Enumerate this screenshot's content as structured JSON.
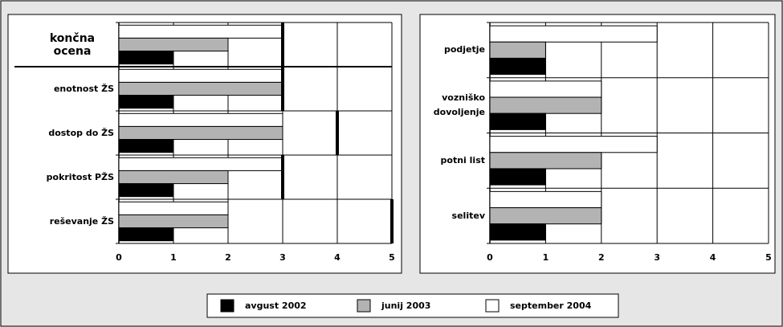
{
  "chart_data": [
    {
      "type": "bar",
      "orientation": "horizontal",
      "categories": [
        "končna ocena",
        "enotnost ŽS",
        "dostop do ŽS",
        "pokritost PŽS",
        "reševanje ŽS"
      ],
      "series": [
        {
          "name": "september 2004",
          "color": "#ffffff",
          "values": [
            3,
            3,
            3,
            3,
            2
          ]
        },
        {
          "name": "junij 2003",
          "color": "#b3b3b3",
          "values": [
            2,
            3,
            3,
            2,
            2
          ]
        },
        {
          "name": "avgust 2002",
          "color": "#000000",
          "values": [
            1,
            1,
            1,
            1,
            1
          ]
        }
      ],
      "markers": [
        3,
        3,
        4,
        3,
        5
      ],
      "xlim": [
        0,
        5
      ],
      "xticks": [
        0,
        1,
        2,
        3,
        4,
        5
      ],
      "grid": true
    },
    {
      "type": "bar",
      "orientation": "horizontal",
      "categories": [
        "podjetje",
        "vozniško dovoljenje",
        "potni list",
        "selitev"
      ],
      "series": [
        {
          "name": "september 2004",
          "color": "#ffffff",
          "values": [
            3,
            2,
            3,
            2
          ]
        },
        {
          "name": "junij 2003",
          "color": "#b3b3b3",
          "values": [
            1,
            2,
            2,
            2
          ]
        },
        {
          "name": "avgust 2002",
          "color": "#000000",
          "values": [
            1,
            1,
            1,
            1
          ]
        }
      ],
      "xlim": [
        0,
        5
      ],
      "xticks": [
        0,
        1,
        2,
        3,
        4,
        5
      ],
      "grid": true
    }
  ]
}
